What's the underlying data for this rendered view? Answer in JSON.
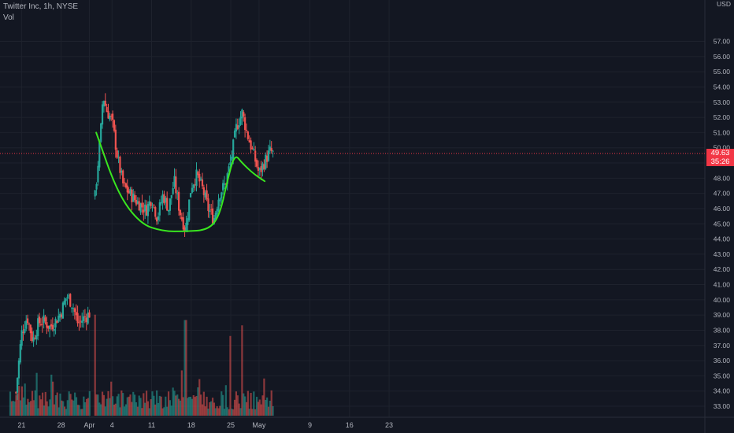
{
  "header": {
    "symbol_line": "Twitter Inc, 1h, NYSE",
    "volume_label": "Vol"
  },
  "price_scale": {
    "currency": "USD",
    "last_price": "49.63",
    "countdown": "35:26"
  },
  "colors": {
    "background": "#131722",
    "grid": "#1e222d",
    "up": "#26a69a",
    "down": "#ef5350",
    "pattern": "#39e61f",
    "last_price": "#f23645"
  },
  "chart_data": {
    "type": "candlestick",
    "title": "Twitter Inc, 1h, NYSE",
    "y_axis": {
      "range": [
        32.5,
        57.2
      ],
      "ticks": [
        "33.00",
        "34.00",
        "35.00",
        "36.00",
        "37.00",
        "38.00",
        "39.00",
        "40.00",
        "41.00",
        "42.00",
        "43.00",
        "44.00",
        "45.00",
        "46.00",
        "47.00",
        "48.00",
        "49.00",
        "50.00",
        "51.00",
        "52.00",
        "53.00",
        "54.00",
        "55.00",
        "56.00",
        "57.00"
      ]
    },
    "x_axis": {
      "ticks": [
        "21",
        "28",
        "Apr",
        "4",
        "11",
        "18",
        "25",
        "May",
        "9",
        "16",
        "23"
      ],
      "tick_days": [
        -11,
        -4,
        1,
        5,
        12,
        19,
        26,
        31,
        40,
        47,
        54
      ]
    },
    "series_keypoints": {
      "segment_1_close": [
        [
          -12,
          33.9
        ],
        [
          -11,
          37.8
        ],
        [
          -10,
          38.9
        ],
        [
          -9,
          37.3
        ],
        [
          -8,
          38.5
        ],
        [
          -7,
          38.6
        ],
        [
          -6,
          38.2
        ],
        [
          -5,
          38.6
        ],
        [
          -4,
          39.2
        ],
        [
          -3,
          40.3
        ],
        [
          -2,
          39.7
        ],
        [
          -1,
          38.4
        ],
        [
          0,
          38.8
        ],
        [
          1,
          39.1
        ]
      ],
      "segment_2_close": [
        [
          2,
          46.8
        ],
        [
          3,
          51.0
        ],
        [
          3.4,
          53.5
        ],
        [
          4,
          52.5
        ],
        [
          5,
          51.8
        ],
        [
          6,
          49.3
        ],
        [
          7,
          47.5
        ],
        [
          9,
          46.6
        ],
        [
          11,
          45.9
        ],
        [
          12,
          46.7
        ],
        [
          13,
          45.4
        ],
        [
          14,
          46.9
        ],
        [
          15,
          46.0
        ],
        [
          16,
          47.8
        ],
        [
          17,
          45.8
        ],
        [
          18,
          44.6
        ],
        [
          19,
          47.5
        ],
        [
          20,
          48.2
        ],
        [
          21,
          47.3
        ],
        [
          22,
          46.0
        ],
        [
          23,
          45.3
        ],
        [
          24,
          47.0
        ],
        [
          25,
          47.6
        ],
        [
          26,
          49.1
        ],
        [
          27,
          51.4
        ],
        [
          28,
          52.3
        ],
        [
          29,
          50.8
        ],
        [
          30,
          49.6
        ],
        [
          31,
          48.3
        ],
        [
          32,
          49.1
        ],
        [
          33,
          49.8
        ],
        [
          33.5,
          49.6
        ]
      ]
    },
    "volume": {
      "baseline_date": -13,
      "notable_spikes": [
        [
          2,
          0.95
        ],
        [
          18,
          0.9
        ],
        [
          26,
          0.75
        ],
        [
          28,
          0.85
        ],
        [
          32,
          0.35
        ]
      ]
    },
    "annotations": [
      {
        "type": "cup-and-handle curve",
        "color": "#39e61f",
        "points": [
          [
            2.2,
            51.0
          ],
          [
            6,
            47.0
          ],
          [
            10,
            45.0
          ],
          [
            14,
            44.5
          ],
          [
            18,
            44.5
          ],
          [
            22,
            44.6
          ],
          [
            24,
            45.5
          ],
          [
            25.5,
            48.0
          ],
          [
            26.7,
            49.6
          ],
          [
            28,
            49.0
          ],
          [
            30,
            48.3
          ],
          [
            32,
            47.8
          ]
        ]
      }
    ],
    "last_price": 49.63,
    "grid": true
  }
}
